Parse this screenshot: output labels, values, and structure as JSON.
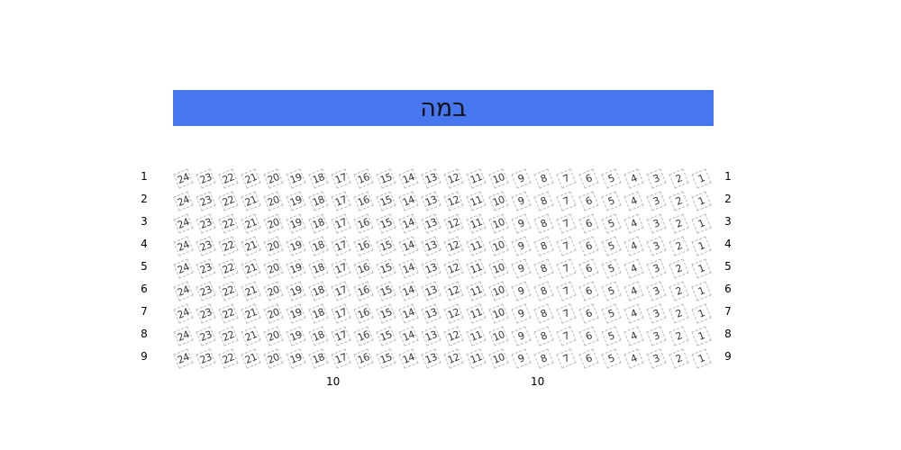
{
  "stage": {
    "label": "במה",
    "color": "#4677ef"
  },
  "rows": [
    "1",
    "2",
    "3",
    "4",
    "5",
    "6",
    "7",
    "8",
    "9"
  ],
  "seats": [
    "24",
    "23",
    "22",
    "21",
    "20",
    "19",
    "18",
    "17",
    "16",
    "15",
    "14",
    "13",
    "12",
    "11",
    "10",
    "9",
    "8",
    "7",
    "6",
    "5",
    "4",
    "3",
    "2",
    "1"
  ],
  "bottom_labels": [
    "10",
    "10"
  ]
}
